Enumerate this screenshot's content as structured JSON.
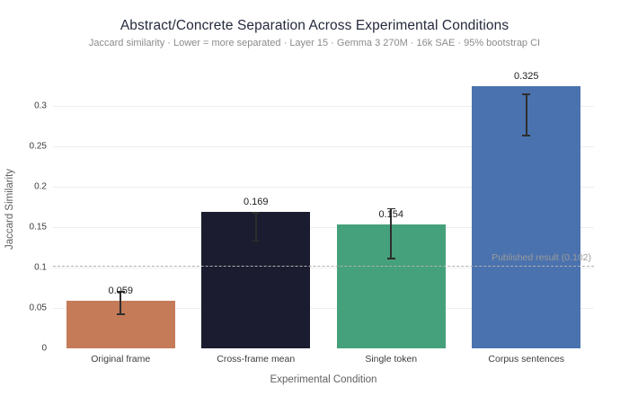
{
  "chart_data": {
    "type": "bar",
    "title": "Abstract/Concrete Separation Across Experimental Conditions",
    "subtitle": "Jaccard similarity · Lower = more separated · Layer 15 · Gemma 3 270M · 16k SAE · 95% bootstrap CI",
    "xlabel": "Experimental Condition",
    "ylabel": "Jaccard Similarity",
    "categories": [
      "Original frame",
      "Cross-frame mean",
      "Single token",
      "Corpus sentences"
    ],
    "values": [
      0.059,
      0.169,
      0.154,
      0.325
    ],
    "value_labels": [
      "0.059",
      "0.169",
      "0.154",
      "0.325"
    ],
    "ci_low": [
      0.042,
      0.133,
      0.111,
      0.264
    ],
    "ci_high": [
      0.07,
      0.168,
      0.173,
      0.315
    ],
    "bar_colors": [
      "#c57a58",
      "#1b1c30",
      "#45a17b",
      "#4a72ae"
    ],
    "error_bar_color": "#2e2e2e",
    "ylim": [
      0,
      0.345
    ],
    "yticks": [
      0,
      0.05,
      0.1,
      0.15,
      0.2,
      0.25,
      0.3
    ],
    "ytick_labels": [
      "0",
      "0.05",
      "0.1",
      "0.15",
      "0.2",
      "0.25",
      "0.3"
    ],
    "grid": "horizontal-only",
    "legend": "none",
    "reference_line": {
      "value": 0.102,
      "label": "Published result (0.102)",
      "style": "dashed",
      "color": "#b0b0b0",
      "label_color": "#9b9b9b"
    }
  }
}
